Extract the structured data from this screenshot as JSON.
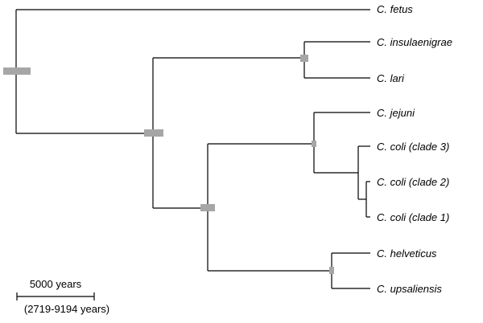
{
  "taxa": [
    {
      "id": "fetus",
      "label": "C. fetus"
    },
    {
      "id": "insulaenigrae",
      "label": "C. insulaenigrae"
    },
    {
      "id": "lari",
      "label": "C. lari"
    },
    {
      "id": "jejuni",
      "label": "C. jejuni"
    },
    {
      "id": "coli3",
      "label": "C. coli (clade 3)"
    },
    {
      "id": "coli2",
      "label": "C. coli (clade 2)"
    },
    {
      "id": "coli1",
      "label": "C. coli (clade 1)"
    },
    {
      "id": "helveticus",
      "label": "C. helveticus"
    },
    {
      "id": "upsaliensis",
      "label": "C. upsaliensis"
    }
  ],
  "scale_bar": {
    "label": "5000 years",
    "range_label": "(2719-9194 years)"
  },
  "colors": {
    "branch": "#000000",
    "node_bar": "#a6a6a6"
  }
}
